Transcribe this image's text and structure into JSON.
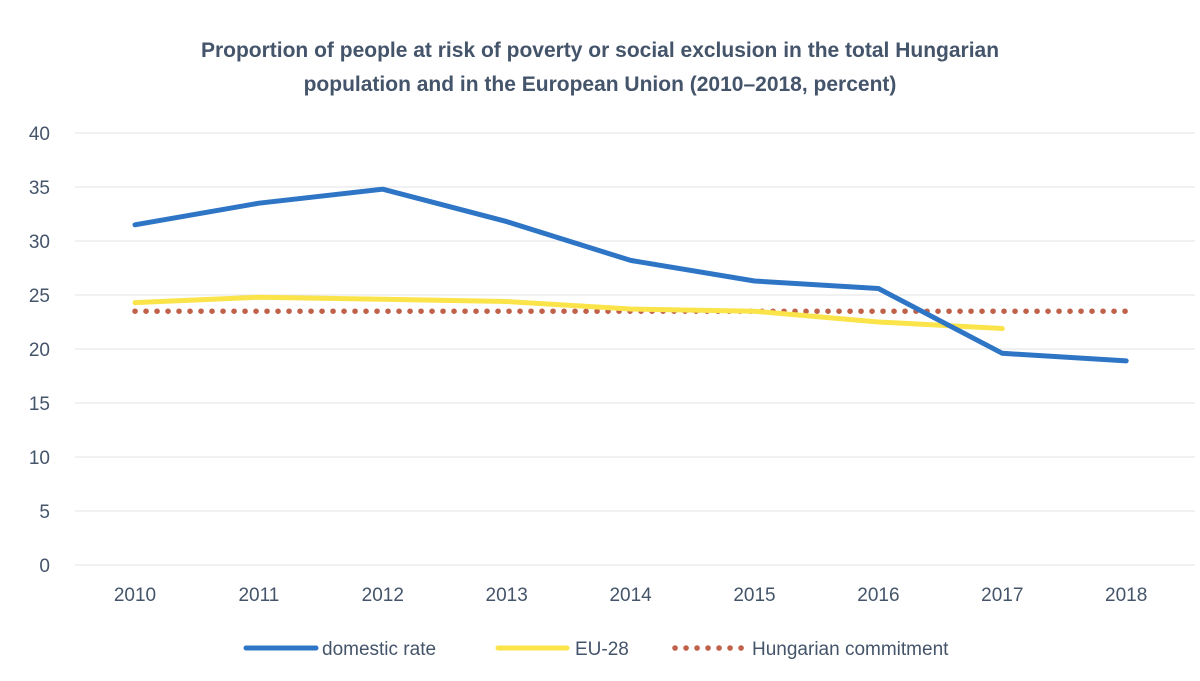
{
  "chart_data": {
    "type": "line",
    "title_lines": [
      "Proportion of people at risk of poverty or social exclusion in the total Hungarian",
      "population and in the European Union (2010–2018, percent)"
    ],
    "x": [
      "2010",
      "2011",
      "2012",
      "2013",
      "2014",
      "2015",
      "2016",
      "2017",
      "2018"
    ],
    "ylim": [
      0,
      40
    ],
    "yticks": [
      0,
      5,
      10,
      15,
      20,
      25,
      30,
      35,
      40
    ],
    "grid": true,
    "legend_position": "bottom",
    "series": [
      {
        "name": "domestic rate",
        "color": "#2e75c6",
        "style": "solid",
        "values": [
          31.5,
          33.5,
          34.8,
          31.8,
          28.2,
          26.3,
          25.6,
          19.6,
          18.9
        ]
      },
      {
        "name": "EU-28",
        "color": "#fbe44a",
        "style": "solid",
        "values": [
          24.3,
          24.8,
          24.6,
          24.4,
          23.7,
          23.5,
          22.5,
          21.9,
          null
        ]
      },
      {
        "name": "Hungarian commitment",
        "color": "#c0614a",
        "style": "dotted",
        "values": [
          23.5,
          23.5,
          23.5,
          23.5,
          23.5,
          23.5,
          23.5,
          23.5,
          23.5
        ]
      }
    ]
  }
}
